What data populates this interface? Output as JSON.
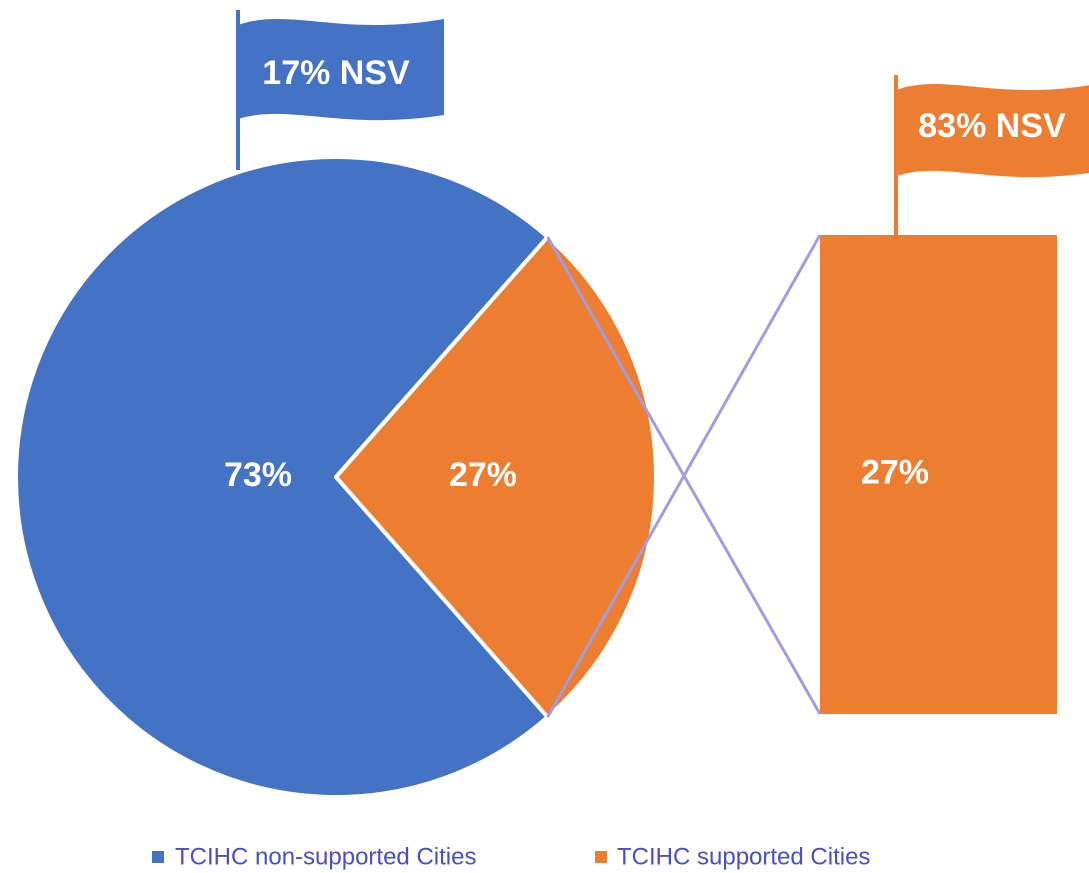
{
  "chart_data": {
    "type": "pie",
    "categories": [
      "TCIHC non-supported Cities",
      "TCIHC supported Cities"
    ],
    "values": [
      73,
      27
    ],
    "value_labels": [
      "73%",
      "27%"
    ],
    "colors": [
      "#4472c4",
      "#ed7d31"
    ],
    "breakout": {
      "values": [
        27
      ],
      "value_labels": [
        "27%"
      ],
      "color": "#ed7d31"
    },
    "annotations": [
      {
        "text": "17% NSV",
        "color": "#4472c4"
      },
      {
        "text": "83% NSV",
        "color": "#ed7d31"
      }
    ],
    "legend": "bottom"
  }
}
